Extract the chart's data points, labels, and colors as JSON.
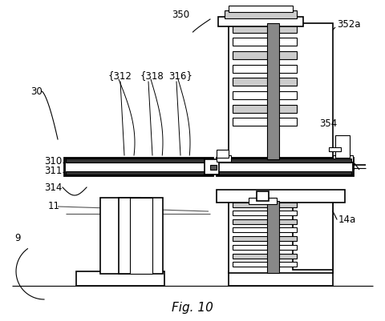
{
  "title": "Fig. 10",
  "bg_color": "#ffffff",
  "line_color": "#000000",
  "gray_light": "#cccccc",
  "gray_dark": "#888888",
  "gray_hatch": "#aaaaaa"
}
